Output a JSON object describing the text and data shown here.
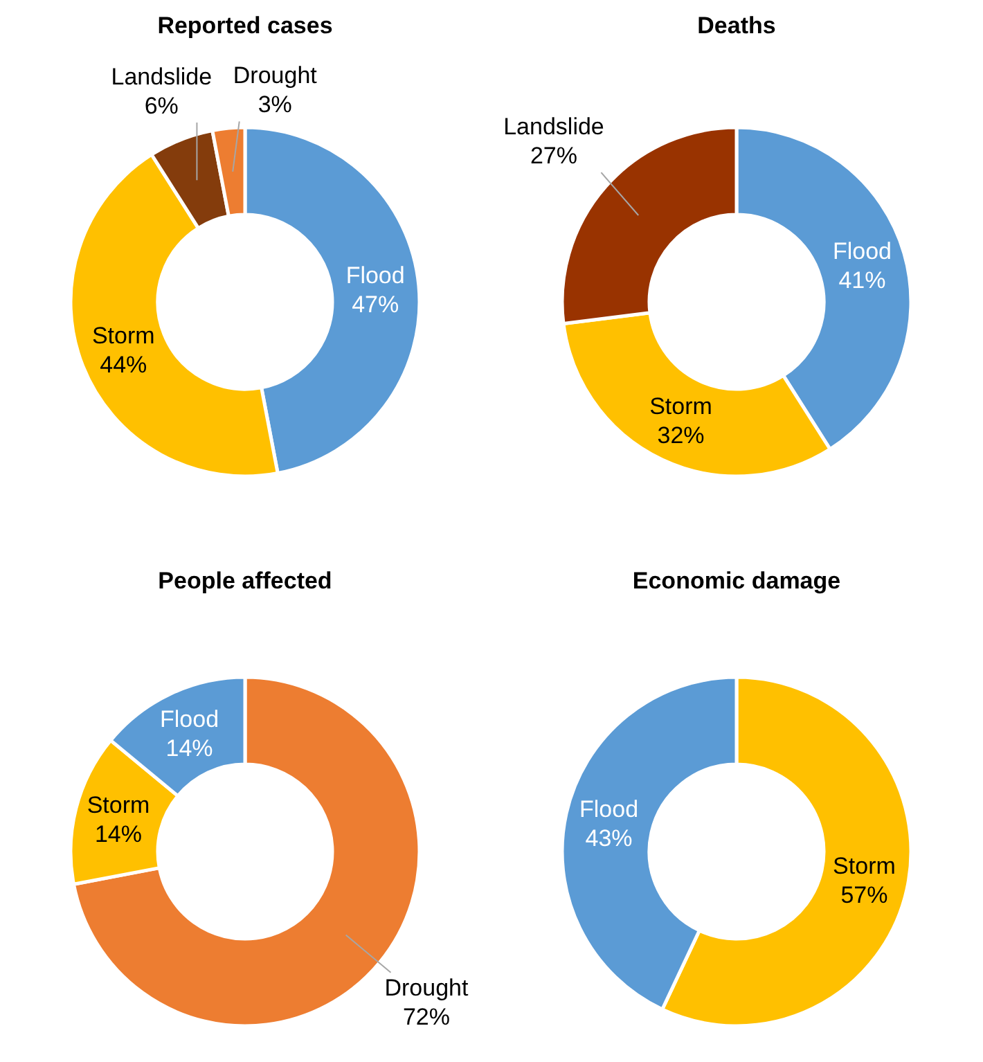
{
  "chart_data": [
    {
      "type": "donut",
      "title": "Reported cases",
      "categories": [
        "Flood",
        "Storm",
        "Landslide",
        "Drought"
      ],
      "values": [
        47,
        44,
        6,
        3
      ],
      "colors": [
        "#5b9bd5",
        "#ffc000",
        "#843c0c",
        "#ed7d31"
      ],
      "value_labels": [
        "47%",
        "44%",
        "6%",
        "3%"
      ]
    },
    {
      "type": "donut",
      "title": "Deaths",
      "categories": [
        "Flood",
        "Storm",
        "Landslide"
      ],
      "values": [
        41,
        32,
        27
      ],
      "colors": [
        "#5b9bd5",
        "#ffc000",
        "#993300"
      ],
      "value_labels": [
        "41%",
        "32%",
        "27%"
      ]
    },
    {
      "type": "donut",
      "title": "People affected",
      "categories": [
        "Drought",
        "Storm",
        "Flood"
      ],
      "values": [
        72,
        14,
        14
      ],
      "colors": [
        "#ed7d31",
        "#ffc000",
        "#5b9bd5"
      ],
      "value_labels": [
        "72%",
        "14%",
        "14%"
      ]
    },
    {
      "type": "donut",
      "title": "Economic damage",
      "categories": [
        "Storm",
        "Flood"
      ],
      "values": [
        57,
        43
      ],
      "colors": [
        "#ffc000",
        "#5b9bd5"
      ],
      "value_labels": [
        "57%",
        "43%"
      ]
    }
  ]
}
